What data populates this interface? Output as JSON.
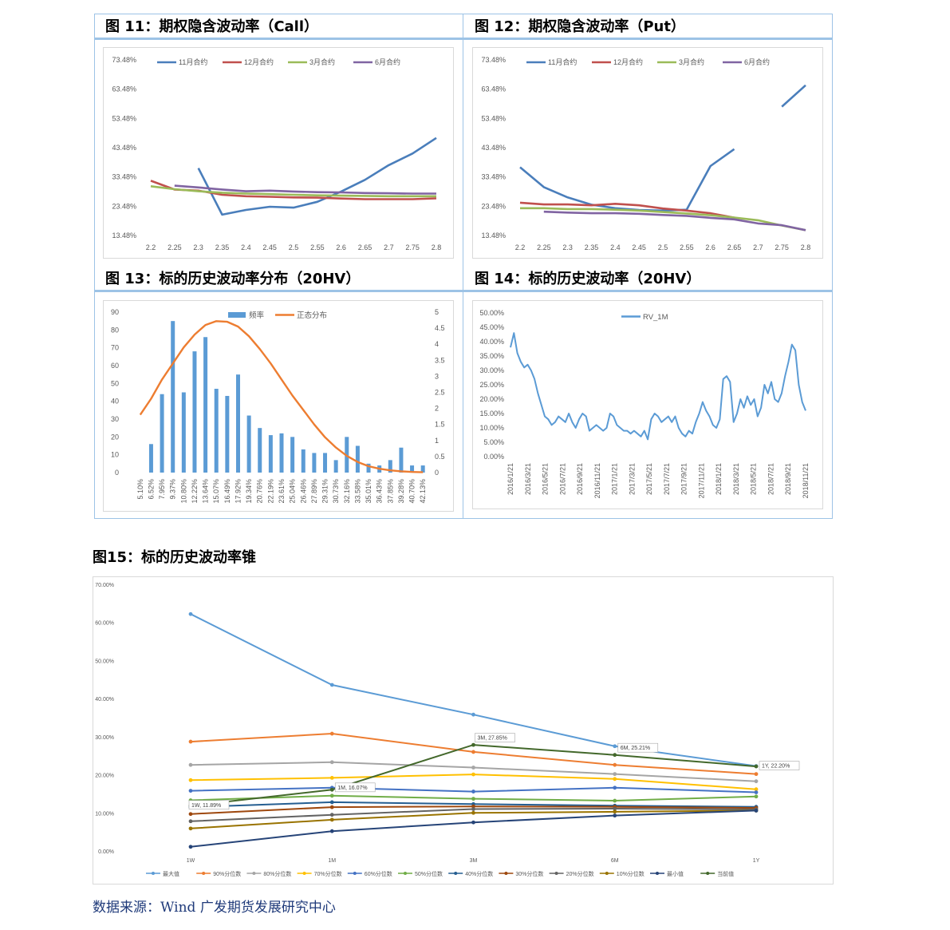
{
  "titles": {
    "fig11": "图 11：期权隐含波动率（Call）",
    "fig12": "图 12：期权隐含波动率（Put）",
    "fig13": "图 13：标的历史波动率分布（20HV）",
    "fig14": "图 14：标的历史波动率（20HV）",
    "fig15": "图15：标的历史波动率锥"
  },
  "source": "数据来源：Wind 广发期货发展研究中心",
  "colors": {
    "blue": "#4a7ebb",
    "red": "#c0504d",
    "green": "#9bbb59",
    "purple": "#8064a2",
    "orange": "#ed7d31",
    "lightblue": "#5b9bd5",
    "frame": "#9dc3e6"
  },
  "chart_data": [
    {
      "id": "fig11",
      "type": "line",
      "title": "图 11：期权隐含波动率（Call）",
      "x": [
        2.2,
        2.25,
        2.3,
        2.35,
        2.4,
        2.45,
        2.5,
        2.55,
        2.6,
        2.65,
        2.7,
        2.75,
        2.8
      ],
      "xticks": [
        "2.2",
        "2.25",
        "2.3",
        "2.35",
        "2.4",
        "2.45",
        "2.5",
        "2.55",
        "2.6",
        "2.65",
        "2.7",
        "2.75",
        "2.8"
      ],
      "yticks": [
        "13.48%",
        "23.48%",
        "33.48%",
        "43.48%",
        "53.48%",
        "63.48%",
        "73.48%"
      ],
      "ylim": [
        13.48,
        73.48
      ],
      "series": [
        {
          "name": "11月合约",
          "color": "#4a7ebb",
          "values": [
            null,
            null,
            36.5,
            20.6,
            22.2,
            23.3,
            23.0,
            25.0,
            28.5,
            32.5,
            37.5,
            41.5,
            46.8
          ]
        },
        {
          "name": "12月合约",
          "color": "#c0504d",
          "values": [
            32.2,
            29.2,
            28.8,
            27.4,
            26.9,
            26.7,
            26.5,
            26.4,
            26.1,
            25.9,
            25.9,
            25.9,
            26.2
          ]
        },
        {
          "name": "3月合约",
          "color": "#9bbb59",
          "values": [
            30.3,
            29.3,
            28.6,
            28.1,
            27.8,
            27.6,
            27.4,
            27.2,
            27.1,
            27.0,
            26.9,
            26.9,
            26.9
          ]
        },
        {
          "name": "6月合约",
          "color": "#8064a2",
          "values": [
            null,
            30.5,
            29.9,
            29.2,
            28.6,
            28.8,
            28.5,
            28.3,
            28.2,
            28.0,
            27.9,
            27.8,
            27.8
          ]
        }
      ]
    },
    {
      "id": "fig12",
      "type": "line",
      "title": "图 12：期权隐含波动率（Put）",
      "x": [
        2.2,
        2.25,
        2.3,
        2.35,
        2.4,
        2.45,
        2.5,
        2.55,
        2.6,
        2.65,
        2.7,
        2.75,
        2.8
      ],
      "xticks": [
        "2.2",
        "2.25",
        "2.3",
        "2.35",
        "2.4",
        "2.45",
        "2.5",
        "2.55",
        "2.6",
        "2.65",
        "2.7",
        "2.75",
        "2.8"
      ],
      "yticks": [
        "13.48%",
        "23.48%",
        "33.48%",
        "43.48%",
        "53.48%",
        "63.48%",
        "73.48%"
      ],
      "ylim": [
        13.48,
        73.48
      ],
      "series": [
        {
          "name": "11月合约",
          "color": "#4a7ebb",
          "values": [
            36.8,
            30.0,
            26.5,
            24.0,
            22.8,
            22.2,
            22.0,
            22.3,
            37.2,
            43.0,
            null,
            57.5,
            64.8
          ]
        },
        {
          "name": "12月合约",
          "color": "#c0504d",
          "values": [
            24.7,
            24.1,
            24.1,
            23.8,
            24.3,
            23.8,
            22.7,
            22.0,
            21.1,
            19.6,
            null,
            null,
            null
          ]
        },
        {
          "name": "3月合约",
          "color": "#9bbb59",
          "values": [
            22.8,
            22.8,
            22.5,
            22.5,
            22.3,
            22.0,
            21.5,
            21.0,
            20.4,
            19.6,
            18.7,
            16.9,
            15.3
          ]
        },
        {
          "name": "6月合约",
          "color": "#8064a2",
          "values": [
            null,
            21.6,
            21.3,
            21.1,
            21.1,
            20.9,
            20.5,
            20.2,
            19.5,
            19.0,
            17.6,
            17.0,
            15.3
          ]
        }
      ]
    },
    {
      "id": "fig13",
      "type": "bar",
      "title": "图 13：标的历史波动率分布（20HV）",
      "categories": [
        "5.10%",
        "6.52%",
        "7.95%",
        "9.37%",
        "10.80%",
        "12.22%",
        "13.64%",
        "15.07%",
        "16.49%",
        "17.92%",
        "19.34%",
        "20.76%",
        "22.19%",
        "23.61%",
        "25.04%",
        "26.46%",
        "27.89%",
        "29.31%",
        "30.73%",
        "32.16%",
        "33.58%",
        "35.01%",
        "36.43%",
        "37.85%",
        "39.28%",
        "40.70%",
        "42.13%"
      ],
      "series": [
        {
          "name": "频率",
          "color": "#5b9bd5",
          "axis": "left",
          "values": [
            0,
            16,
            44,
            85,
            45,
            68,
            76,
            47,
            43,
            55,
            32,
            25,
            21,
            22,
            20,
            13,
            11,
            11,
            7,
            20,
            15,
            5,
            4,
            7,
            14,
            4,
            4
          ]
        },
        {
          "name": "正态分布",
          "color": "#ed7d31",
          "axis": "right",
          "type": "line",
          "values": [
            1.8,
            2.3,
            2.9,
            3.4,
            3.9,
            4.3,
            4.6,
            4.72,
            4.7,
            4.55,
            4.25,
            3.85,
            3.4,
            2.9,
            2.4,
            1.95,
            1.5,
            1.1,
            0.78,
            0.52,
            0.33,
            0.2,
            0.12,
            0.07,
            0.04,
            0.02,
            0.01
          ]
        }
      ],
      "ylim_left": [
        0,
        90
      ],
      "yticks_left": [
        "0",
        "10",
        "20",
        "30",
        "40",
        "50",
        "60",
        "70",
        "80",
        "90"
      ],
      "ylim_right": [
        0,
        5
      ],
      "yticks_right": [
        "0",
        "0.5",
        "1",
        "1.5",
        "2",
        "2.5",
        "3",
        "3.5",
        "4",
        "4.5",
        "5"
      ]
    },
    {
      "id": "fig14",
      "type": "line",
      "title": "图 14：标的历史波动率（20HV）",
      "xticks": [
        "2016/1/21",
        "2016/3/21",
        "2016/5/21",
        "2016/7/21",
        "2016/9/21",
        "2016/11/21",
        "2017/1/21",
        "2017/3/21",
        "2017/5/21",
        "2017/7/21",
        "2017/9/21",
        "2017/11/21",
        "2018/1/21",
        "2018/3/21",
        "2018/5/21",
        "2018/7/21",
        "2018/9/21",
        "2018/11/21"
      ],
      "yticks": [
        "0.00%",
        "5.00%",
        "10.00%",
        "15.00%",
        "20.00%",
        "25.00%",
        "30.00%",
        "35.00%",
        "40.00%",
        "45.00%",
        "50.00%"
      ],
      "ylim": [
        0,
        50
      ],
      "series": [
        {
          "name": "RV_1M",
          "color": "#5b9bd5",
          "values": [
            38,
            43,
            36,
            33,
            31,
            32,
            30,
            27,
            22,
            18,
            14,
            13,
            11,
            12,
            14,
            13,
            12,
            15,
            12,
            10,
            13,
            15,
            14,
            9,
            10,
            11,
            10,
            9,
            10,
            15,
            14,
            11,
            10,
            9,
            9,
            8,
            9,
            8,
            7,
            9,
            6,
            13,
            15,
            14,
            12,
            13,
            14,
            12,
            14,
            10,
            8,
            7,
            9,
            8,
            12,
            15,
            19,
            16,
            14,
            11,
            10,
            13,
            27,
            28,
            26,
            12,
            15,
            20,
            17,
            21,
            18,
            20,
            14,
            17,
            25,
            22,
            26,
            20,
            19,
            22,
            28,
            33,
            39,
            37,
            25,
            19,
            16
          ]
        }
      ]
    },
    {
      "id": "fig15",
      "type": "line",
      "title": "图15：标的历史波动率锥",
      "categories": [
        "1W",
        "1M",
        "3M",
        "6M",
        "1Y"
      ],
      "yticks": [
        "0.00%",
        "10.00%",
        "20.00%",
        "30.00%",
        "40.00%",
        "50.00%",
        "60.00%",
        "70.00%"
      ],
      "ylim": [
        0,
        70
      ],
      "series": [
        {
          "name": "最大值",
          "color": "#5b9bd5",
          "values": [
            62.2,
            43.6,
            35.8,
            27.5,
            22.3
          ]
        },
        {
          "name": "90%分位数",
          "color": "#ed7d31",
          "values": [
            28.7,
            30.8,
            26.0,
            22.6,
            20.2
          ]
        },
        {
          "name": "80%分位数",
          "color": "#a5a5a5",
          "values": [
            22.6,
            23.3,
            21.9,
            20.2,
            18.3
          ]
        },
        {
          "name": "70%分位数",
          "color": "#ffc000",
          "values": [
            18.6,
            19.2,
            20.1,
            18.9,
            16.2
          ]
        },
        {
          "name": "60%分位数",
          "color": "#4472c4",
          "values": [
            15.8,
            16.6,
            15.6,
            16.6,
            15.4
          ]
        },
        {
          "name": "50%分位数",
          "color": "#70ad47",
          "values": [
            13.3,
            14.5,
            13.7,
            13.2,
            14.3
          ]
        },
        {
          "name": "40%分位数",
          "color": "#255e91",
          "values": [
            11.5,
            12.8,
            12.3,
            11.9,
            11.6
          ]
        },
        {
          "name": "30%分位数",
          "color": "#9e480e",
          "values": [
            9.7,
            11.5,
            11.7,
            11.6,
            11.3
          ]
        },
        {
          "name": "20%分位数",
          "color": "#636363",
          "values": [
            7.8,
            9.5,
            11.0,
            11.1,
            10.9
          ]
        },
        {
          "name": "10%分位数",
          "color": "#997300",
          "values": [
            5.9,
            8.2,
            10.0,
            10.3,
            10.6
          ]
        },
        {
          "name": "最小值",
          "color": "#264478",
          "values": [
            1.1,
            5.2,
            7.5,
            9.3,
            10.6
          ]
        },
        {
          "name": "当前值",
          "color": "#43682b",
          "values": [
            11.89,
            16.07,
            27.85,
            25.21,
            22.2
          ]
        }
      ],
      "labels": [
        "1W, 11.89%",
        "1M, 16.07%",
        "3M, 27.85%",
        "6M, 25.21%",
        "1Y, 22.20%"
      ]
    }
  ]
}
